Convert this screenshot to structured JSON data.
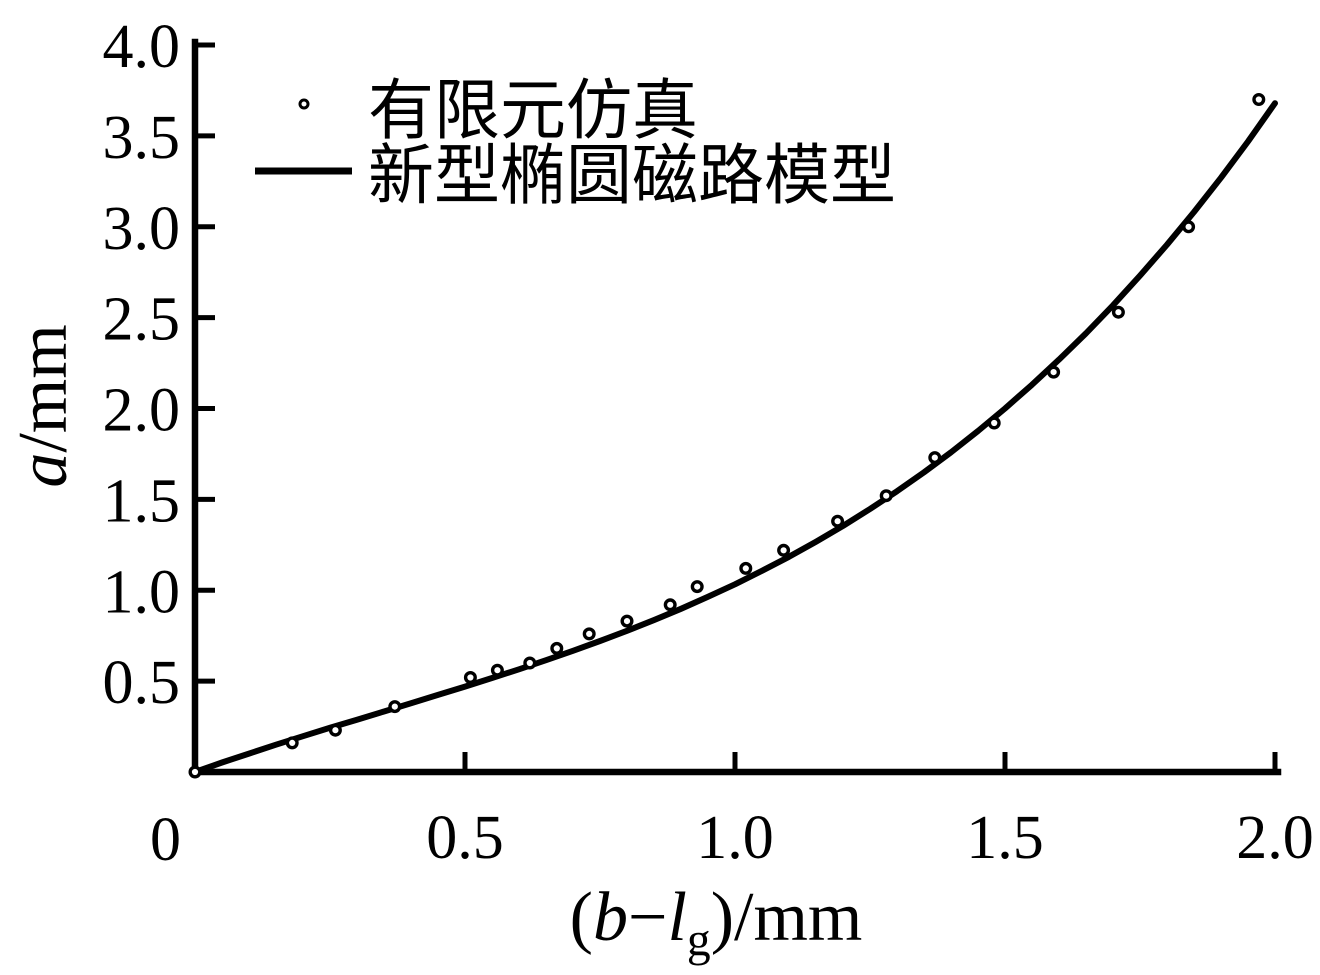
{
  "figure": {
    "background": "#ffffff",
    "ink": "#000000"
  },
  "chart_data": {
    "type": "scatter+line",
    "title": "",
    "xlabel": "(b−lg)/mm",
    "xlabel_parts": [
      {
        "text": "(",
        "style": "normal"
      },
      {
        "text": "b",
        "style": "italic"
      },
      {
        "text": "−",
        "style": "normal"
      },
      {
        "text": "l",
        "style": "italic"
      },
      {
        "text": "g",
        "style": "subscript"
      },
      {
        "text": ")/mm",
        "style": "normal"
      }
    ],
    "ylabel": "a/mm",
    "ylabel_parts": [
      {
        "text": "a",
        "style": "italic"
      },
      {
        "text": "/mm",
        "style": "normal"
      }
    ],
    "xlim": [
      0,
      2.0
    ],
    "ylim": [
      0,
      4.0
    ],
    "grid": false,
    "origin_tick_label": "0",
    "x_ticks": {
      "values": [
        0.5,
        1.0,
        1.5,
        2.0
      ],
      "labels": [
        "0.5",
        "1.0",
        "1.5",
        "2.0"
      ]
    },
    "y_ticks": {
      "values": [
        0.5,
        1.0,
        1.5,
        2.0,
        2.5,
        3.0,
        3.5,
        4.0
      ],
      "labels": [
        "0.5",
        "1.0",
        "1.5",
        "2.0",
        "2.5",
        "3.0",
        "3.5",
        "4.0"
      ]
    },
    "legend": {
      "position": "top-left",
      "entries": [
        {
          "marker": "open-circle",
          "label": "有限元仿真"
        },
        {
          "marker": "solid-line",
          "label": "新型椭圆磁路模型"
        }
      ]
    },
    "series": [
      {
        "name": "有限元仿真",
        "type": "scatter",
        "marker": "open-circle",
        "points": [
          [
            0.0,
            0.0
          ],
          [
            0.18,
            0.16
          ],
          [
            0.26,
            0.23
          ],
          [
            0.37,
            0.36
          ],
          [
            0.51,
            0.52
          ],
          [
            0.56,
            0.56
          ],
          [
            0.62,
            0.6
          ],
          [
            0.67,
            0.68
          ],
          [
            0.73,
            0.76
          ],
          [
            0.8,
            0.83
          ],
          [
            0.88,
            0.92
          ],
          [
            0.93,
            1.02
          ],
          [
            1.02,
            1.12
          ],
          [
            1.09,
            1.22
          ],
          [
            1.19,
            1.38
          ],
          [
            1.28,
            1.52
          ],
          [
            1.37,
            1.73
          ],
          [
            1.48,
            1.92
          ],
          [
            1.59,
            2.2
          ],
          [
            1.71,
            2.53
          ],
          [
            1.84,
            3.0
          ],
          [
            1.97,
            3.7
          ]
        ]
      },
      {
        "name": "新型椭圆磁路模型",
        "type": "line",
        "points": [
          [
            0.0,
            0.0
          ],
          [
            0.05,
            0.052
          ],
          [
            0.1,
            0.101
          ],
          [
            0.15,
            0.15
          ],
          [
            0.2,
            0.197
          ],
          [
            0.25,
            0.243
          ],
          [
            0.3,
            0.288
          ],
          [
            0.35,
            0.333
          ],
          [
            0.4,
            0.378
          ],
          [
            0.45,
            0.424
          ],
          [
            0.5,
            0.47
          ],
          [
            0.55,
            0.517
          ],
          [
            0.6,
            0.565
          ],
          [
            0.65,
            0.615
          ],
          [
            0.7,
            0.667
          ],
          [
            0.75,
            0.721
          ],
          [
            0.8,
            0.777
          ],
          [
            0.85,
            0.836
          ],
          [
            0.9,
            0.898
          ],
          [
            0.95,
            0.964
          ],
          [
            1.0,
            1.033
          ],
          [
            1.05,
            1.107
          ],
          [
            1.1,
            1.184
          ],
          [
            1.15,
            1.267
          ],
          [
            1.2,
            1.354
          ],
          [
            1.25,
            1.447
          ],
          [
            1.3,
            1.545
          ],
          [
            1.35,
            1.649
          ],
          [
            1.4,
            1.759
          ],
          [
            1.45,
            1.876
          ],
          [
            1.5,
            2.0
          ],
          [
            1.55,
            2.131
          ],
          [
            1.6,
            2.269
          ],
          [
            1.65,
            2.414
          ],
          [
            1.7,
            2.568
          ],
          [
            1.75,
            2.731
          ],
          [
            1.8,
            2.901
          ],
          [
            1.85,
            3.081
          ],
          [
            1.9,
            3.27
          ],
          [
            1.95,
            3.469
          ],
          [
            2.0,
            3.68
          ]
        ]
      }
    ]
  }
}
